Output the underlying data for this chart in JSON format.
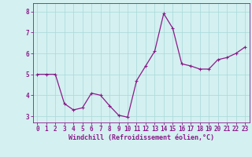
{
  "x": [
    0,
    1,
    2,
    3,
    4,
    5,
    6,
    7,
    8,
    9,
    10,
    11,
    12,
    13,
    14,
    15,
    16,
    17,
    18,
    19,
    20,
    21,
    22,
    23
  ],
  "y": [
    5.0,
    5.0,
    5.0,
    3.6,
    3.3,
    3.4,
    4.1,
    4.0,
    3.5,
    3.05,
    2.95,
    4.7,
    5.4,
    6.1,
    7.9,
    7.2,
    5.5,
    5.4,
    5.25,
    5.25,
    5.7,
    5.8,
    6.0,
    6.3
  ],
  "line_color": "#8b1a8b",
  "marker": "+",
  "marker_size": 3.5,
  "line_width": 0.9,
  "bg_color": "#d4f0f0",
  "grid_color": "#a8d8d8",
  "xlabel": "Windchill (Refroidissement éolien,°C)",
  "xlim": [
    -0.5,
    23.5
  ],
  "ylim": [
    2.7,
    8.4
  ],
  "yticks": [
    3,
    4,
    5,
    6,
    7,
    8
  ],
  "xticks": [
    0,
    1,
    2,
    3,
    4,
    5,
    6,
    7,
    8,
    9,
    10,
    11,
    12,
    13,
    14,
    15,
    16,
    17,
    18,
    19,
    20,
    21,
    22,
    23
  ],
  "xlabel_fontsize": 6.0,
  "tick_fontsize": 5.5,
  "text_color": "#8b1a8b"
}
